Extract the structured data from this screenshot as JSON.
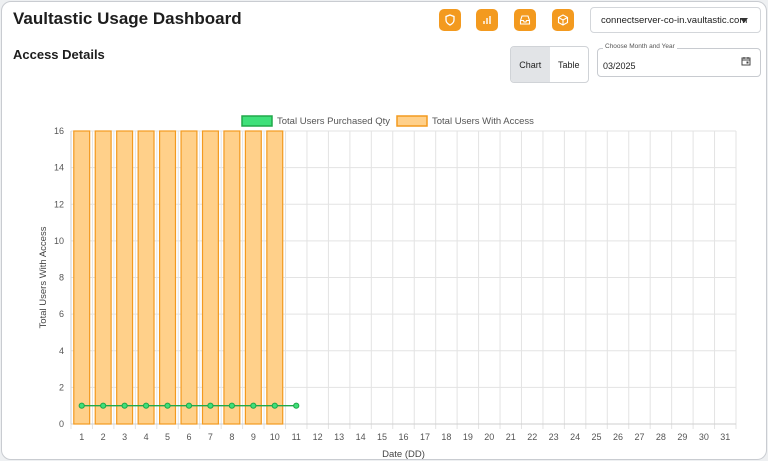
{
  "header": {
    "title": "Vaultastic Usage Dashboard",
    "server": "connectserver-co-in.vaultastic.com"
  },
  "toolbar_icons": [
    "shield-icon",
    "bar-chart-icon",
    "inbox-icon",
    "box-icon"
  ],
  "accent_color": "#f39a1f",
  "section": {
    "title": "Access Details",
    "view_toggle": {
      "chart_label": "Chart",
      "table_label": "Table",
      "selected": "Chart"
    },
    "month_picker": {
      "label": "Choose Month and Year",
      "value": "03/2025"
    }
  },
  "chart_data": {
    "type": "bar",
    "xlabel": "Date (DD)",
    "ylabel": "Total Users With Access",
    "ylim": [
      0,
      16
    ],
    "yticks": [
      0,
      2,
      4,
      6,
      8,
      10,
      12,
      14,
      16
    ],
    "categories": [
      "1",
      "2",
      "3",
      "4",
      "5",
      "6",
      "7",
      "8",
      "9",
      "10",
      "11",
      "12",
      "13",
      "14",
      "15",
      "16",
      "17",
      "18",
      "19",
      "20",
      "21",
      "22",
      "23",
      "24",
      "25",
      "26",
      "27",
      "28",
      "29",
      "30",
      "31"
    ],
    "grid": true,
    "legend_position": "top-center",
    "series": [
      {
        "name": "Total Users Purchased Qty",
        "type": "line",
        "color": "#21a84a",
        "fill": "#3fe07a",
        "values": [
          1,
          1,
          1,
          1,
          1,
          1,
          1,
          1,
          1,
          1,
          1,
          null,
          null,
          null,
          null,
          null,
          null,
          null,
          null,
          null,
          null,
          null,
          null,
          null,
          null,
          null,
          null,
          null,
          null,
          null,
          null
        ]
      },
      {
        "name": "Total Users With Access",
        "type": "bar",
        "color": "#f39a1f",
        "fill": "#ffd08a",
        "values": [
          16,
          16,
          16,
          16,
          16,
          16,
          16,
          16,
          16,
          16,
          null,
          null,
          null,
          null,
          null,
          null,
          null,
          null,
          null,
          null,
          null,
          null,
          null,
          null,
          null,
          null,
          null,
          null,
          null,
          null,
          null
        ]
      }
    ]
  }
}
